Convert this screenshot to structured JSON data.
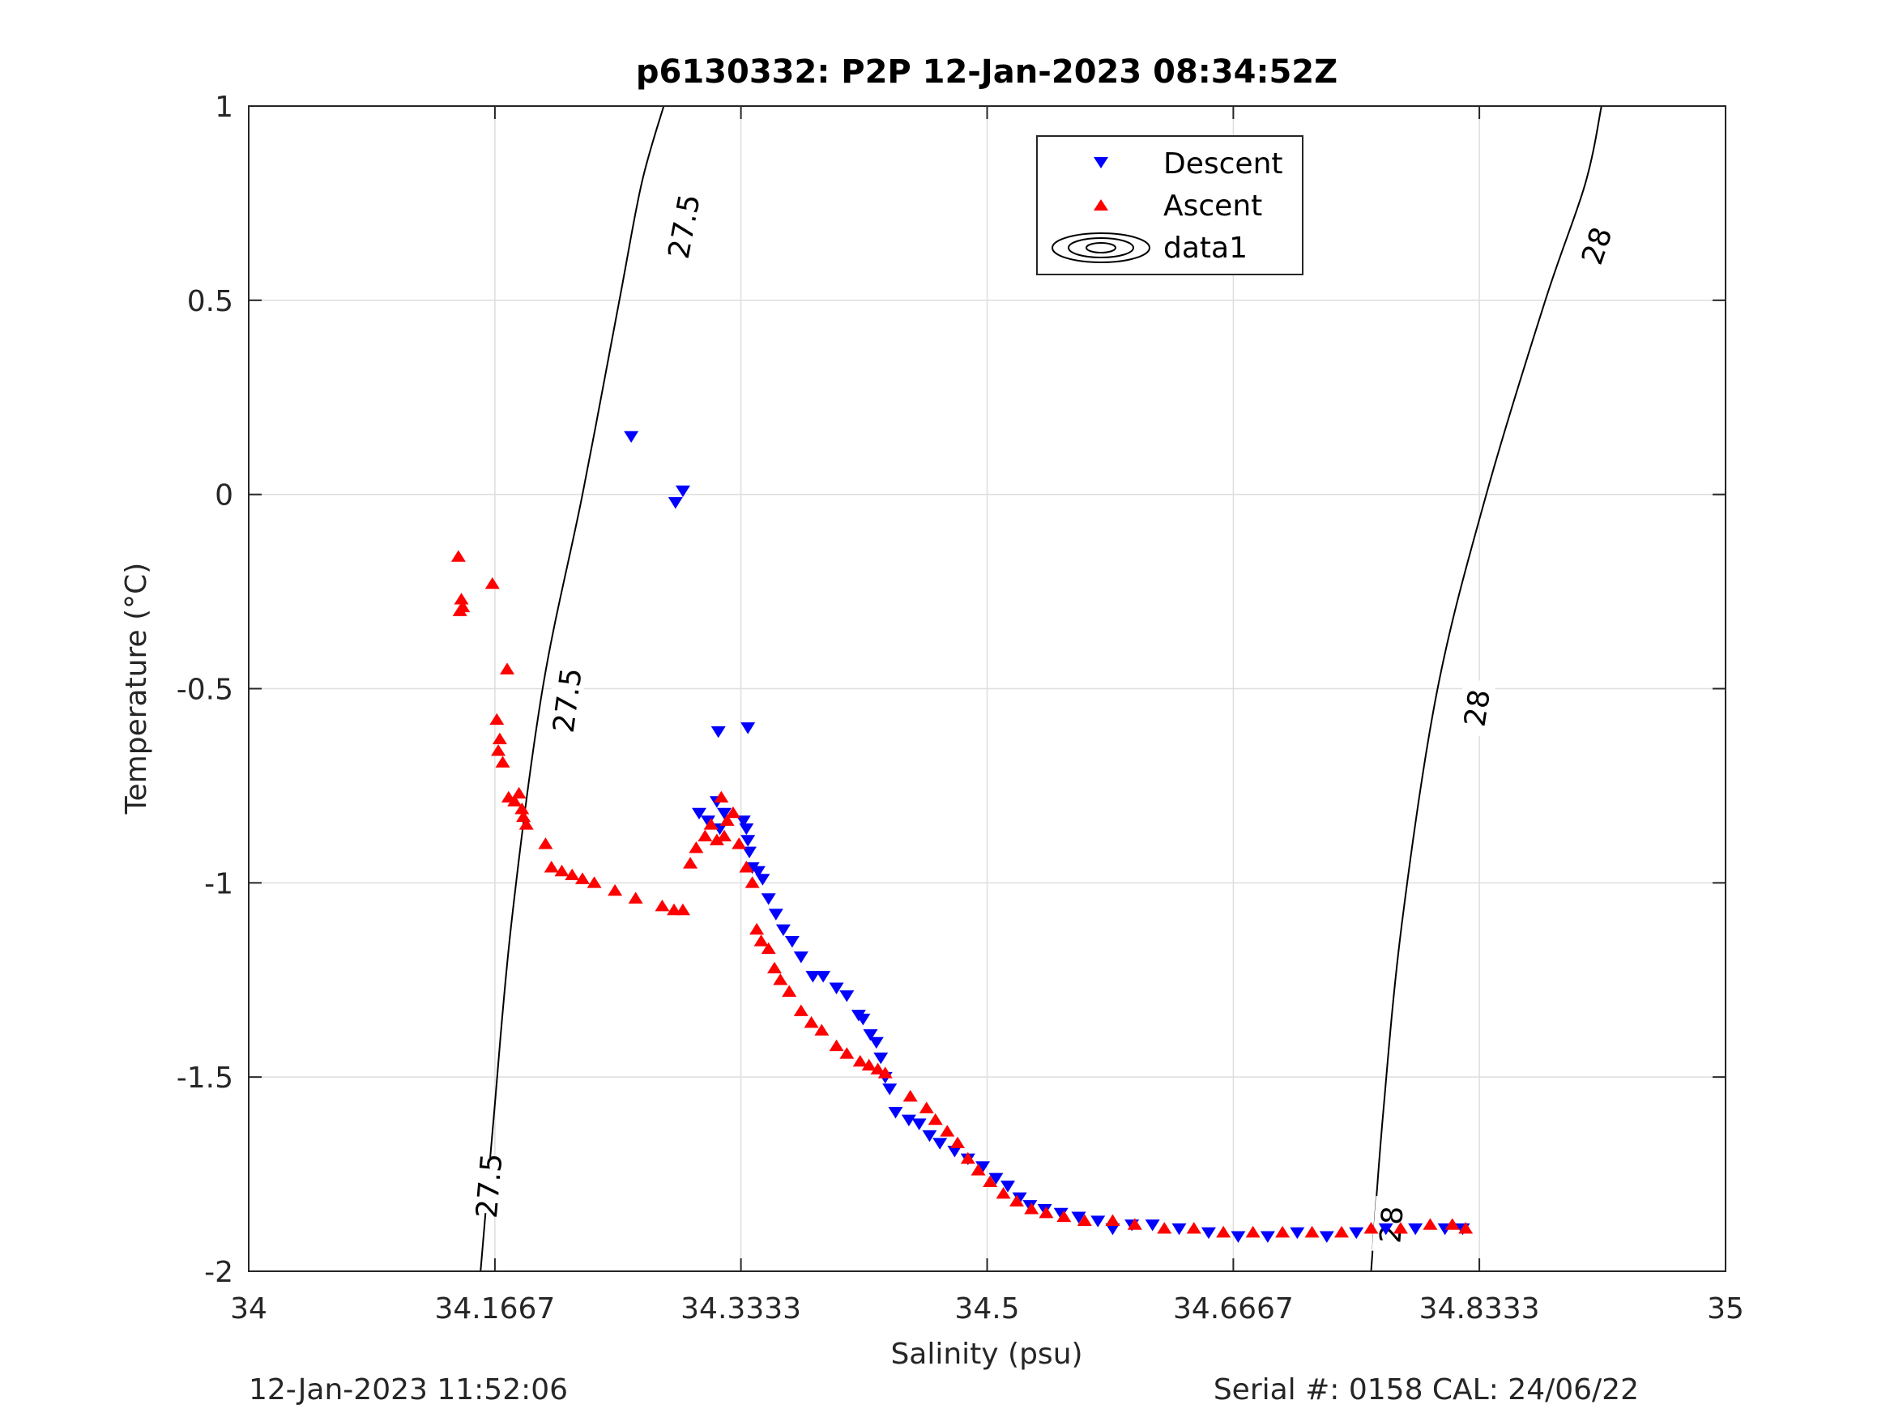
{
  "chart_data": {
    "type": "scatter",
    "title": "p6130332: P2P 12-Jan-2023 08:34:52Z",
    "xlabel": "Salinity (psu)",
    "ylabel": "Temperature (°C)",
    "xlim": [
      34,
      35
    ],
    "ylim": [
      -2,
      1
    ],
    "grid": true,
    "xticks": [
      34,
      34.1667,
      34.3333,
      34.5,
      34.6667,
      34.8333,
      35
    ],
    "xtick_labels": [
      "34",
      "34.1667",
      "34.3333",
      "34.5",
      "34.6667",
      "34.8333",
      "35"
    ],
    "yticks": [
      -2,
      -1.5,
      -1,
      -0.5,
      0,
      0.5,
      1
    ],
    "ytick_labels": [
      "-2",
      "-1.5",
      "-1",
      "-0.5",
      "0",
      "0.5",
      "1"
    ],
    "legend_position": "top-center",
    "legend": [
      "Descent",
      "Ascent",
      "data1"
    ],
    "colors": {
      "descent": "#0000ff",
      "ascent": "#ff0000",
      "contour": "#000000",
      "grid": "#dedede",
      "axis": "#262626"
    },
    "series": [
      {
        "name": "Descent",
        "marker": "triangle-down",
        "points": [
          [
            34.259,
            0.15
          ],
          [
            34.289,
            -0.02
          ],
          [
            34.294,
            0.01
          ],
          [
            34.318,
            -0.61
          ],
          [
            34.338,
            -0.6
          ],
          [
            34.305,
            -0.82
          ],
          [
            34.311,
            -0.84
          ],
          [
            34.317,
            -0.79
          ],
          [
            34.319,
            -0.86
          ],
          [
            34.322,
            -0.82
          ],
          [
            34.335,
            -0.84
          ],
          [
            34.337,
            -0.86
          ],
          [
            34.338,
            -0.89
          ],
          [
            34.339,
            -0.92
          ],
          [
            34.341,
            -0.96
          ],
          [
            34.345,
            -0.97
          ],
          [
            34.348,
            -0.99
          ],
          [
            34.352,
            -1.04
          ],
          [
            34.357,
            -1.08
          ],
          [
            34.362,
            -1.12
          ],
          [
            34.368,
            -1.15
          ],
          [
            34.374,
            -1.19
          ],
          [
            34.382,
            -1.24
          ],
          [
            34.389,
            -1.24
          ],
          [
            34.398,
            -1.27
          ],
          [
            34.405,
            -1.29
          ],
          [
            34.413,
            -1.34
          ],
          [
            34.416,
            -1.35
          ],
          [
            34.421,
            -1.39
          ],
          [
            34.425,
            -1.41
          ],
          [
            34.428,
            -1.45
          ],
          [
            34.431,
            -1.5
          ],
          [
            34.434,
            -1.53
          ],
          [
            34.438,
            -1.59
          ],
          [
            34.447,
            -1.61
          ],
          [
            34.454,
            -1.62
          ],
          [
            34.461,
            -1.65
          ],
          [
            34.468,
            -1.67
          ],
          [
            34.478,
            -1.69
          ],
          [
            34.487,
            -1.71
          ],
          [
            34.497,
            -1.73
          ],
          [
            34.506,
            -1.76
          ],
          [
            34.514,
            -1.78
          ],
          [
            34.522,
            -1.81
          ],
          [
            34.529,
            -1.83
          ],
          [
            34.539,
            -1.84
          ],
          [
            34.55,
            -1.85
          ],
          [
            34.562,
            -1.86
          ],
          [
            34.575,
            -1.87
          ],
          [
            34.585,
            -1.89
          ],
          [
            34.598,
            -1.88
          ],
          [
            34.612,
            -1.88
          ],
          [
            34.63,
            -1.89
          ],
          [
            34.65,
            -1.9
          ],
          [
            34.67,
            -1.91
          ],
          [
            34.69,
            -1.91
          ],
          [
            34.71,
            -1.9
          ],
          [
            34.73,
            -1.91
          ],
          [
            34.75,
            -1.9
          ],
          [
            34.77,
            -1.89
          ],
          [
            34.79,
            -1.89
          ],
          [
            34.81,
            -1.89
          ],
          [
            34.822,
            -1.89
          ]
        ]
      },
      {
        "name": "Ascent",
        "marker": "triangle-up",
        "points": [
          [
            34.142,
            -0.16
          ],
          [
            34.144,
            -0.27
          ],
          [
            34.145,
            -0.29
          ],
          [
            34.143,
            -0.3
          ],
          [
            34.165,
            -0.23
          ],
          [
            34.175,
            -0.45
          ],
          [
            34.168,
            -0.58
          ],
          [
            34.17,
            -0.63
          ],
          [
            34.169,
            -0.66
          ],
          [
            34.172,
            -0.69
          ],
          [
            34.176,
            -0.78
          ],
          [
            34.18,
            -0.79
          ],
          [
            34.183,
            -0.77
          ],
          [
            34.185,
            -0.81
          ],
          [
            34.186,
            -0.83
          ],
          [
            34.188,
            -0.85
          ],
          [
            34.201,
            -0.9
          ],
          [
            34.205,
            -0.96
          ],
          [
            34.212,
            -0.97
          ],
          [
            34.219,
            -0.98
          ],
          [
            34.226,
            -0.99
          ],
          [
            34.234,
            -1.0
          ],
          [
            34.248,
            -1.02
          ],
          [
            34.262,
            -1.04
          ],
          [
            34.28,
            -1.06
          ],
          [
            34.288,
            -1.07
          ],
          [
            34.294,
            -1.07
          ],
          [
            34.299,
            -0.95
          ],
          [
            34.303,
            -0.91
          ],
          [
            34.309,
            -0.88
          ],
          [
            34.313,
            -0.85
          ],
          [
            34.317,
            -0.89
          ],
          [
            34.32,
            -0.78
          ],
          [
            34.322,
            -0.88
          ],
          [
            34.324,
            -0.84
          ],
          [
            34.328,
            -0.82
          ],
          [
            34.332,
            -0.9
          ],
          [
            34.337,
            -0.96
          ],
          [
            34.341,
            -1.0
          ],
          [
            34.344,
            -1.12
          ],
          [
            34.347,
            -1.15
          ],
          [
            34.352,
            -1.17
          ],
          [
            34.356,
            -1.22
          ],
          [
            34.36,
            -1.25
          ],
          [
            34.366,
            -1.28
          ],
          [
            34.374,
            -1.33
          ],
          [
            34.381,
            -1.36
          ],
          [
            34.388,
            -1.38
          ],
          [
            34.398,
            -1.42
          ],
          [
            34.405,
            -1.44
          ],
          [
            34.414,
            -1.46
          ],
          [
            34.42,
            -1.47
          ],
          [
            34.426,
            -1.48
          ],
          [
            34.431,
            -1.49
          ],
          [
            34.448,
            -1.55
          ],
          [
            34.459,
            -1.58
          ],
          [
            34.465,
            -1.61
          ],
          [
            34.473,
            -1.64
          ],
          [
            34.48,
            -1.67
          ],
          [
            34.487,
            -1.71
          ],
          [
            34.494,
            -1.74
          ],
          [
            34.502,
            -1.77
          ],
          [
            34.511,
            -1.8
          ],
          [
            34.52,
            -1.82
          ],
          [
            34.53,
            -1.84
          ],
          [
            34.54,
            -1.85
          ],
          [
            34.552,
            -1.86
          ],
          [
            34.566,
            -1.87
          ],
          [
            34.585,
            -1.87
          ],
          [
            34.6,
            -1.88
          ],
          [
            34.62,
            -1.89
          ],
          [
            34.64,
            -1.89
          ],
          [
            34.66,
            -1.9
          ],
          [
            34.68,
            -1.9
          ],
          [
            34.7,
            -1.9
          ],
          [
            34.72,
            -1.9
          ],
          [
            34.74,
            -1.9
          ],
          [
            34.76,
            -1.89
          ],
          [
            34.78,
            -1.89
          ],
          [
            34.8,
            -1.88
          ],
          [
            34.815,
            -1.88
          ],
          [
            34.824,
            -1.89
          ]
        ]
      },
      {
        "name": "data1",
        "type": "contour",
        "levels": [
          {
            "level": 27.5,
            "points": [
              [
                34.157,
                -2.0
              ],
              [
                34.166,
                -1.6
              ],
              [
                34.178,
                -1.1
              ],
              [
                34.199,
                -0.5
              ],
              [
                34.226,
                0.0
              ],
              [
                34.251,
                0.5
              ],
              [
                34.266,
                0.8
              ],
              [
                34.281,
                1.0
              ]
            ],
            "labels": [
              {
                "text": "27.5",
                "s": 34.163,
                "t": -1.78
              },
              {
                "text": "27.5",
                "s": 34.216,
                "t": -0.53
              },
              {
                "text": "27.5",
                "s": 34.295,
                "t": 0.69
              }
            ]
          },
          {
            "level": 28.0,
            "points": [
              [
                34.76,
                -2.0
              ],
              [
                34.768,
                -1.6
              ],
              [
                34.781,
                -1.1
              ],
              [
                34.805,
                -0.5
              ],
              [
                34.838,
                0.0
              ],
              [
                34.878,
                0.5
              ],
              [
                34.905,
                0.8
              ],
              [
                34.916,
                1.0
              ]
            ],
            "labels": [
              {
                "text": "28",
                "s": 34.774,
                "t": -1.88
              },
              {
                "text": "28",
                "s": 34.832,
                "t": -0.55
              },
              {
                "text": "28",
                "s": 34.913,
                "t": 0.64
              }
            ]
          }
        ]
      }
    ]
  },
  "footer": {
    "timestamp": "12-Jan-2023 11:52:06",
    "serial": "Serial #: 0158  CAL: 24/06/22"
  }
}
